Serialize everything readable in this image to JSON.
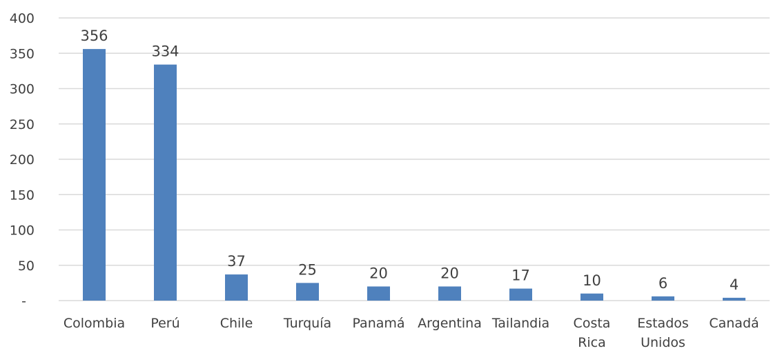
{
  "chart_data": {
    "type": "bar",
    "categories": [
      [
        "Colombia"
      ],
      [
        "Perú"
      ],
      [
        "Chile"
      ],
      [
        "Turquía"
      ],
      [
        "Panamá"
      ],
      [
        "Argentina"
      ],
      [
        "Tailandia"
      ],
      [
        "Costa",
        "Rica"
      ],
      [
        "Estados",
        "Unidos"
      ],
      [
        "Canadá"
      ]
    ],
    "values": [
      356,
      334,
      37,
      25,
      20,
      20,
      17,
      10,
      6,
      4
    ],
    "data_labels": [
      "356",
      "334",
      "37",
      "25",
      "20",
      "20",
      "17",
      "10",
      "6",
      "4"
    ],
    "y_ticks": [
      0,
      50,
      100,
      150,
      200,
      250,
      300,
      350,
      400
    ],
    "y_tick_labels": [
      "-",
      "50",
      "100",
      "150",
      "200",
      "250",
      "300",
      "350",
      "400"
    ],
    "ylim": [
      0,
      400
    ],
    "grid": true,
    "legend": "none",
    "title": "",
    "xlabel": "",
    "ylabel": "",
    "colors": {
      "bar": "#4F81BD",
      "grid": "#D9D9D9",
      "text": "#404040"
    }
  }
}
